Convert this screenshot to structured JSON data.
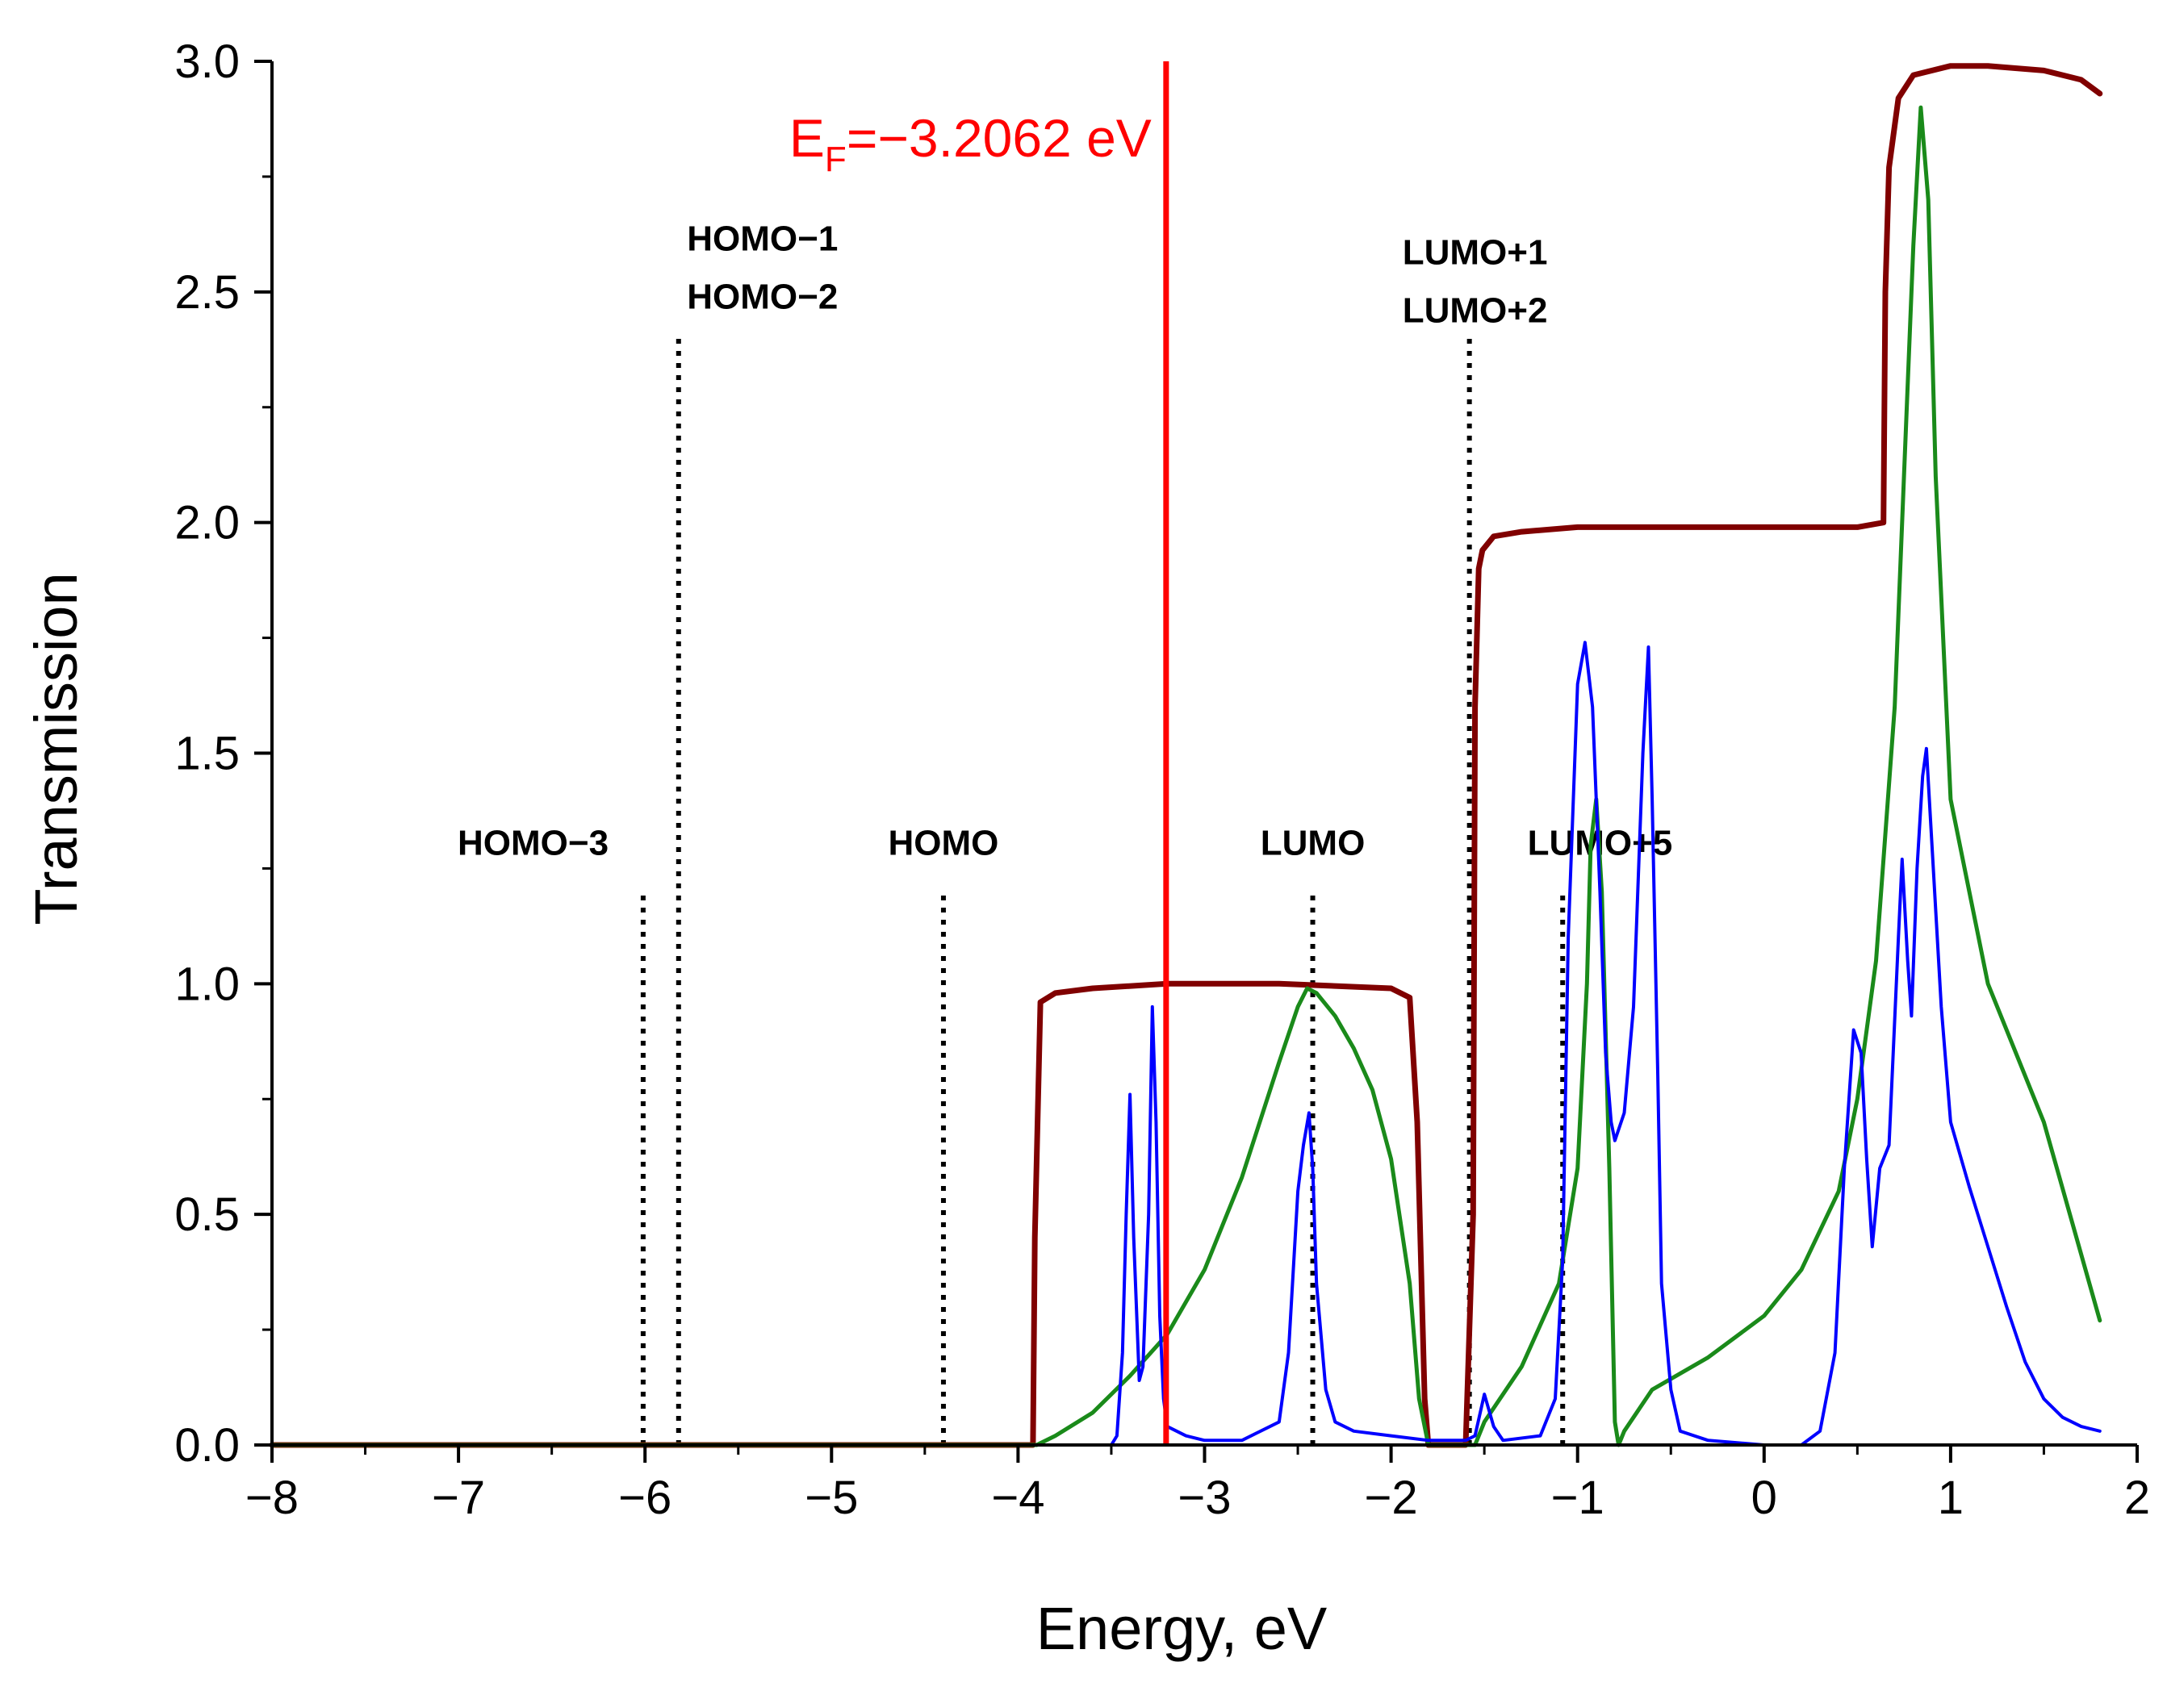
{
  "chart_data": {
    "type": "line",
    "title": "",
    "xlabel": "Energy, eV",
    "ylabel": "Transmission",
    "xlim": [
      -8,
      2
    ],
    "ylim": [
      0,
      3.0
    ],
    "x_ticks": [
      -8,
      -7,
      -6,
      -5,
      -4,
      -3,
      -2,
      -1,
      0,
      1,
      2
    ],
    "x_tick_labels": [
      "−8",
      "−7",
      "−6",
      "−5",
      "−4",
      "−3",
      "−2",
      "−1",
      "0",
      "1",
      "2"
    ],
    "y_ticks": [
      0,
      0.5,
      1.0,
      1.5,
      2.0,
      2.5,
      3.0
    ],
    "y_tick_labels": [
      "0.0",
      "0.5",
      "1.0",
      "1.5",
      "2.0",
      "2.5",
      "3.0"
    ],
    "grid": false,
    "legend": "none",
    "fermi": {
      "x": -3.2062,
      "label_main": "E",
      "label_sub": "F",
      "label_rest": "=−3.2062 eV",
      "color": "#ff0000"
    },
    "orbitals": [
      {
        "id": "homo-3",
        "x": -6.01,
        "top": 1.2,
        "label_lines": [
          "HOMO−3"
        ],
        "label_y": 1.28,
        "label_center": -6.6
      },
      {
        "id": "homo-1-2",
        "x": -5.82,
        "top": 2.4,
        "label_lines": [
          "HOMO−1",
          "HOMO−2"
        ],
        "label_y": 2.59,
        "label_center": -5.37
      },
      {
        "id": "homo",
        "x": -4.4,
        "top": 1.2,
        "label_lines": [
          "HOMO"
        ],
        "label_y": 1.28,
        "label_center": -4.4
      },
      {
        "id": "lumo",
        "x": -2.42,
        "top": 1.2,
        "label_lines": [
          "LUMO"
        ],
        "label_y": 1.28,
        "label_center": -2.42
      },
      {
        "id": "lumo+1-2",
        "x": -1.58,
        "top": 2.4,
        "label_lines": [
          "LUMO+1",
          "LUMO+2"
        ],
        "label_y": 2.56,
        "label_center": -1.55
      },
      {
        "id": "lumo+5",
        "x": -1.08,
        "top": 1.2,
        "label_lines": [
          "LUMO+5"
        ],
        "label_y": 1.28,
        "label_center": -0.88
      }
    ],
    "series": [
      {
        "name": "dark red",
        "color": "#800000",
        "width": 7,
        "x": [
          -8,
          -3.92,
          -3.91,
          -3.88,
          -3.8,
          -3.6,
          -3.2,
          -2.6,
          -2.0,
          -1.9,
          -1.86,
          -1.82,
          -1.8,
          -1.6,
          -1.56,
          -1.55,
          -1.53,
          -1.51,
          -1.45,
          -1.3,
          -1.0,
          -0.5,
          0.0,
          0.5,
          0.64,
          0.65,
          0.67,
          0.72,
          0.8,
          1.0,
          1.2,
          1.5,
          1.7,
          1.8
        ],
        "y": [
          0,
          0,
          0.45,
          0.96,
          0.98,
          0.99,
          1.0,
          1.0,
          0.99,
          0.97,
          0.7,
          0.1,
          0,
          0,
          0.5,
          1.6,
          1.9,
          1.94,
          1.97,
          1.98,
          1.99,
          1.99,
          1.99,
          1.99,
          2.0,
          2.5,
          2.77,
          2.92,
          2.97,
          2.99,
          2.99,
          2.98,
          2.96,
          2.93
        ]
      },
      {
        "name": "green",
        "color": "#1a8a1a",
        "width": 5,
        "x": [
          -8,
          -3.9,
          -3.8,
          -3.6,
          -3.4,
          -3.2,
          -3.0,
          -2.8,
          -2.6,
          -2.5,
          -2.45,
          -2.4,
          -2.3,
          -2.2,
          -2.1,
          -2.0,
          -1.9,
          -1.85,
          -1.8,
          -1.6,
          -1.55,
          -1.5,
          -1.3,
          -1.1,
          -1.0,
          -0.95,
          -0.93,
          -0.9,
          -0.87,
          -0.83,
          -0.8,
          -0.78,
          -0.75,
          -0.6,
          -0.3,
          0.0,
          0.2,
          0.4,
          0.5,
          0.6,
          0.7,
          0.75,
          0.8,
          0.84,
          0.88,
          0.92,
          1.0,
          1.2,
          1.5,
          1.8
        ],
        "y": [
          0,
          0,
          0.02,
          0.07,
          0.15,
          0.24,
          0.38,
          0.58,
          0.83,
          0.95,
          0.99,
          0.98,
          0.93,
          0.86,
          0.77,
          0.62,
          0.35,
          0.1,
          0,
          0,
          0,
          0.05,
          0.17,
          0.35,
          0.6,
          1.0,
          1.3,
          1.4,
          1.2,
          0.6,
          0.05,
          0,
          0.03,
          0.12,
          0.19,
          0.28,
          0.38,
          0.55,
          0.75,
          1.05,
          1.6,
          2.1,
          2.6,
          2.9,
          2.7,
          2.1,
          1.4,
          1.0,
          0.7,
          0.27
        ]
      },
      {
        "name": "blue",
        "color": "#0000ff",
        "width": 4,
        "x": [
          -8,
          -3.5,
          -3.47,
          -3.44,
          -3.42,
          -3.4,
          -3.38,
          -3.35,
          -3.33,
          -3.3,
          -3.28,
          -3.26,
          -3.24,
          -3.22,
          -3.2,
          -3.1,
          -3.0,
          -2.8,
          -2.6,
          -2.55,
          -2.5,
          -2.47,
          -2.44,
          -2.42,
          -2.4,
          -2.35,
          -2.3,
          -2.2,
          -2.0,
          -1.8,
          -1.6,
          -1.55,
          -1.5,
          -1.45,
          -1.4,
          -1.2,
          -1.12,
          -1.08,
          -1.05,
          -1.0,
          -0.96,
          -0.92,
          -0.88,
          -0.85,
          -0.82,
          -0.8,
          -0.75,
          -0.7,
          -0.65,
          -0.62,
          -0.6,
          -0.57,
          -0.55,
          -0.5,
          -0.45,
          -0.3,
          0.0,
          0.2,
          0.3,
          0.38,
          0.43,
          0.48,
          0.52,
          0.55,
          0.58,
          0.62,
          0.67,
          0.72,
          0.74,
          0.77,
          0.79,
          0.82,
          0.85,
          0.87,
          0.9,
          0.95,
          1.0,
          1.1,
          1.2,
          1.3,
          1.4,
          1.5,
          1.6,
          1.7,
          1.8
        ],
        "y": [
          0,
          0,
          0.02,
          0.2,
          0.5,
          0.76,
          0.45,
          0.14,
          0.17,
          0.5,
          0.95,
          0.7,
          0.28,
          0.1,
          0.04,
          0.02,
          0.01,
          0.01,
          0.05,
          0.2,
          0.55,
          0.65,
          0.72,
          0.6,
          0.35,
          0.12,
          0.05,
          0.03,
          0.02,
          0.01,
          0.01,
          0.02,
          0.11,
          0.04,
          0.01,
          0.02,
          0.1,
          0.4,
          1.1,
          1.65,
          1.74,
          1.6,
          1.2,
          0.85,
          0.7,
          0.66,
          0.72,
          0.95,
          1.5,
          1.73,
          1.4,
          0.8,
          0.35,
          0.12,
          0.03,
          0.01,
          0,
          0,
          0.03,
          0.2,
          0.6,
          0.9,
          0.85,
          0.62,
          0.43,
          0.6,
          0.65,
          1.1,
          1.27,
          1.05,
          0.93,
          1.25,
          1.45,
          1.51,
          1.3,
          0.95,
          0.7,
          0.56,
          0.43,
          0.3,
          0.18,
          0.1,
          0.06,
          0.04,
          0.03
        ]
      }
    ]
  }
}
